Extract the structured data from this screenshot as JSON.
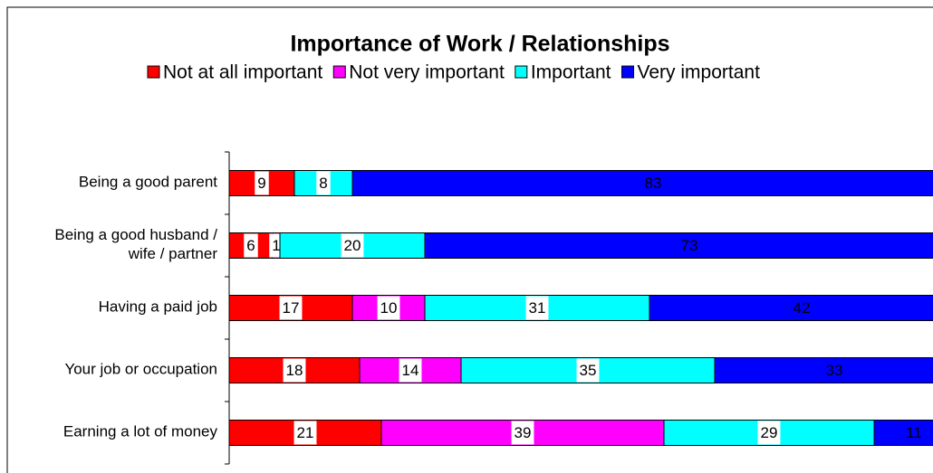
{
  "chart_data": {
    "type": "stacked_bar_horizontal",
    "title": "Importance of Work / Relationships",
    "categories": [
      "Being a good parent",
      "Being a good husband /\nwife / partner",
      "Having a paid job",
      "Your job or occupation",
      "Earning a lot of money"
    ],
    "series": [
      {
        "name": "Not at all important",
        "color": "#ff0000",
        "label_color": "#000000",
        "values": [
          9,
          6,
          17,
          18,
          21
        ]
      },
      {
        "name": "Not very important",
        "color": "#ff00ff",
        "label_color": "#000000",
        "values": [
          null,
          1,
          10,
          14,
          39
        ]
      },
      {
        "name": "Important",
        "color": "#00ffff",
        "label_color": "#000000",
        "values": [
          8,
          20,
          31,
          35,
          29
        ]
      },
      {
        "name": "Very important",
        "color": "#0000ff",
        "label_color": "#ffffff",
        "values": [
          83,
          73,
          42,
          33,
          11
        ]
      }
    ],
    "xlim": [
      0,
      100
    ],
    "legend": "top"
  }
}
